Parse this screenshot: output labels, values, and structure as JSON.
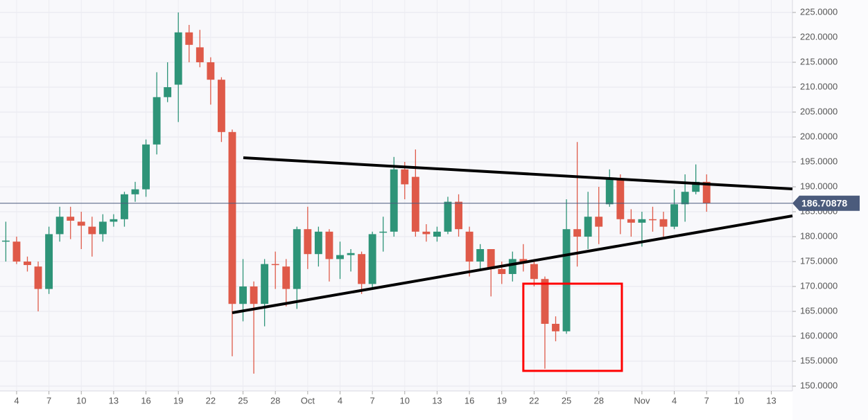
{
  "chart_data": {
    "type": "candlestick",
    "x": [
      3,
      4,
      5,
      6,
      7,
      8,
      9,
      10,
      11,
      12,
      13,
      14,
      15,
      16,
      17,
      18,
      19,
      20,
      21,
      22,
      23,
      24,
      25,
      26,
      27,
      28,
      29,
      30,
      31,
      32,
      33,
      34,
      35,
      36,
      37,
      38,
      39,
      40,
      41,
      42,
      43,
      44,
      45,
      46,
      47,
      48,
      49,
      50,
      51,
      52,
      53,
      54,
      55,
      56,
      57,
      58,
      59,
      60,
      61,
      62,
      63,
      64,
      65,
      66,
      67,
      68
    ],
    "open": [
      179,
      179,
      175,
      174,
      169.5,
      180.5,
      184,
      183,
      182,
      180.5,
      183,
      183.5,
      188.5,
      189.5,
      198.5,
      208,
      210.5,
      221,
      218,
      215,
      211.5,
      201,
      166.5,
      170,
      166.5,
      174.5,
      174,
      169.5,
      181.5,
      176.5,
      181,
      175.5,
      176.3,
      176.5,
      170.5,
      180.8,
      181,
      193.5,
      192,
      181,
      180,
      181,
      187,
      181,
      175,
      177.5,
      173.5,
      172.5,
      175.5,
      174.5,
      171.5,
      162.5,
      161,
      181.5,
      180,
      184,
      186.5,
      191.5,
      183.5,
      182.8,
      183.5,
      183.5,
      182,
      186.5,
      189,
      191
    ],
    "high": [
      183,
      180,
      176,
      175,
      182,
      186,
      186,
      185,
      184,
      184.5,
      184.5,
      189,
      191,
      199.5,
      213,
      215,
      225,
      222.5,
      221.5,
      216,
      212,
      201.5,
      175.5,
      171,
      175.5,
      177,
      175.5,
      182,
      186,
      182,
      181.5,
      179,
      177.5,
      177,
      181,
      184,
      196,
      195,
      197.5,
      182.5,
      182,
      188,
      188.5,
      182,
      178.5,
      177.5,
      175,
      177,
      178.5,
      175.5,
      172,
      164,
      187.5,
      199,
      189,
      190,
      193.5,
      192.5,
      185.5,
      185,
      186,
      185,
      189.5,
      192.5,
      194.5,
      192.5
    ],
    "low": [
      175,
      174.5,
      173,
      165,
      168.5,
      179,
      179.5,
      177.5,
      176,
      179,
      182,
      182,
      187,
      188,
      196.5,
      207,
      203,
      215,
      214,
      206.5,
      199,
      156,
      163,
      152.5,
      162,
      169.5,
      166,
      165.5,
      173.5,
      174,
      171,
      171.5,
      173,
      168.5,
      169.5,
      177,
      180,
      187.5,
      180,
      179,
      179,
      180.5,
      180,
      172,
      173.5,
      168,
      170.5,
      171,
      173,
      170,
      153.5,
      159,
      160.5,
      174,
      177.5,
      178.5,
      186,
      180.5,
      180,
      178,
      181,
      180,
      181.5,
      183,
      188.5,
      185
    ],
    "close": [
      179.2,
      175,
      174.3,
      169.5,
      180.5,
      184,
      183.2,
      182.2,
      180.5,
      183,
      183.5,
      188.5,
      189.5,
      198.5,
      208,
      210,
      221,
      218.5,
      215,
      211.5,
      201,
      166.5,
      170,
      166.5,
      174.5,
      174.3,
      169.5,
      181.5,
      176.5,
      181,
      175.5,
      176.3,
      176.7,
      170.5,
      180.5,
      181,
      193.5,
      190.5,
      181,
      180.5,
      181,
      187,
      181.5,
      175,
      177.5,
      173.5,
      172.5,
      175.5,
      175,
      171.5,
      162.5,
      161,
      181.5,
      180,
      184,
      182,
      191.5,
      183.5,
      182.8,
      183.5,
      183.3,
      182,
      186.5,
      189,
      191,
      186.7
    ],
    "up_color": "#2e9478",
    "down_color": "#df5a49",
    "xlim": [
      2.46,
      75.96
    ],
    "xticks": [
      4,
      7,
      10,
      13,
      16,
      19,
      22,
      25,
      28,
      {
        "value": 31,
        "label": "Oct"
      },
      {
        "value": 34,
        "label": "4"
      },
      {
        "value": 37,
        "label": "7"
      },
      {
        "value": 40,
        "label": "10"
      },
      {
        "value": 43,
        "label": "13"
      },
      {
        "value": 46,
        "label": "16"
      },
      {
        "value": 49,
        "label": "19"
      },
      {
        "value": 52,
        "label": "22"
      },
      {
        "value": 55,
        "label": "25"
      },
      {
        "value": 58,
        "label": "28"
      },
      {
        "value": 62,
        "label": "Nov"
      },
      {
        "value": 65,
        "label": "4"
      },
      {
        "value": 68,
        "label": "7"
      },
      {
        "value": 71,
        "label": "10"
      },
      {
        "value": 74,
        "label": "13"
      }
    ],
    "ylim": [
      149.03,
      227.5
    ],
    "yticks": [
      {
        "value": 150,
        "label": "150.0000"
      },
      {
        "value": 155,
        "label": "155.0000"
      },
      {
        "value": 160,
        "label": "160.0000"
      },
      {
        "value": 165,
        "label": "165.0000"
      },
      {
        "value": 170,
        "label": "170.0000"
      },
      {
        "value": 175,
        "label": "175.0000"
      },
      {
        "value": 180,
        "label": "180.0000"
      },
      {
        "value": 185,
        "label": "185.0000"
      },
      {
        "value": 190,
        "label": "190.0000"
      },
      {
        "value": 195,
        "label": "195.0000"
      },
      {
        "value": 200,
        "label": "200.0000"
      },
      {
        "value": 205,
        "label": "205.0000"
      },
      {
        "value": 210,
        "label": "210.0000"
      },
      {
        "value": 215,
        "label": "215.0000"
      },
      {
        "value": 220,
        "label": "220.0000"
      },
      {
        "value": 225,
        "label": "225.0000"
      }
    ],
    "grid": true,
    "price_line": {
      "value": 186.70878,
      "color": "#4b5b7c"
    },
    "trendlines": [
      {
        "x": [
          25.03,
          75.96
        ],
        "y": [
          195.83,
          189.58
        ],
        "color": "#000000"
      },
      {
        "x": [
          24.0,
          75.96
        ],
        "y": [
          164.72,
          184.17
        ],
        "color": "#000000"
      }
    ],
    "highlight_box": {
      "x": [
        51.0,
        60.14
      ],
      "y": [
        153.06,
        170.56
      ],
      "color": "#ff0000"
    }
  }
}
